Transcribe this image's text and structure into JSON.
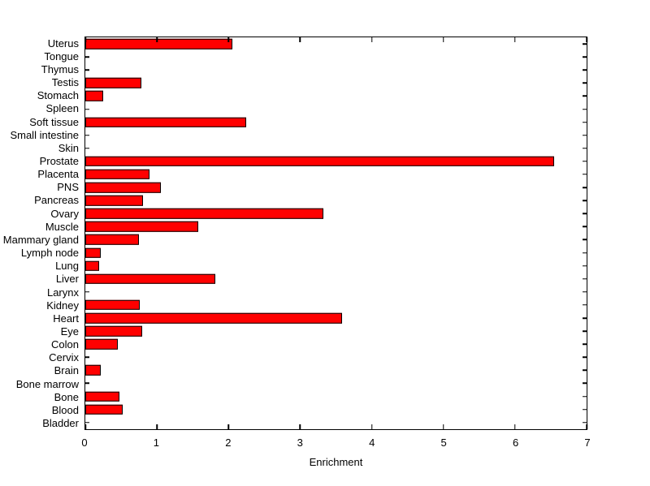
{
  "chart_data": {
    "type": "bar",
    "orientation": "horizontal",
    "title": "",
    "xlabel": "Enrichment",
    "ylabel": "",
    "xlim": [
      0,
      7
    ],
    "xticks": [
      0,
      1,
      2,
      3,
      4,
      5,
      6,
      7
    ],
    "grid": false,
    "legend": false,
    "bar_color": "#FF0000",
    "bar_edge_color": "#000000",
    "axis_color": "#000000",
    "background_color": "#FFFFFF",
    "categories_top_to_bottom": [
      "Uterus",
      "Tongue",
      "Thymus",
      "Testis",
      "Stomach",
      "Spleen",
      "Soft tissue",
      "Small intestine",
      "Skin",
      "Prostate",
      "Placenta",
      "PNS",
      "Pancreas",
      "Ovary",
      "Muscle",
      "Mammary gland",
      "Lymph node",
      "Lung",
      "Liver",
      "Larynx",
      "Kidney",
      "Heart",
      "Eye",
      "Colon",
      "Cervix",
      "Brain",
      "Bone marrow",
      "Bone",
      "Blood",
      "Bladder"
    ],
    "values_top_to_bottom": [
      2.05,
      0,
      0,
      0.78,
      0.25,
      0,
      2.25,
      0,
      0,
      6.55,
      0.9,
      1.05,
      0.81,
      3.32,
      1.58,
      0.75,
      0.21,
      0.19,
      1.82,
      0,
      0.76,
      3.58,
      0.79,
      0.45,
      0,
      0.22,
      0,
      0.48,
      0.52,
      0
    ]
  }
}
